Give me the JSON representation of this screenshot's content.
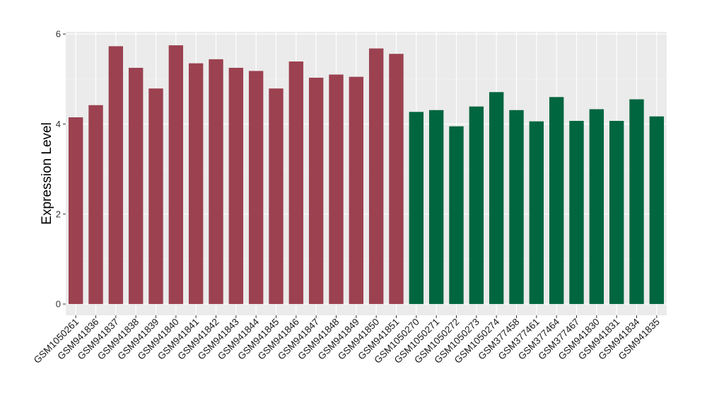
{
  "chart_data": {
    "type": "bar",
    "title": "",
    "xlabel": "",
    "ylabel": "Expression Level",
    "ylim": [
      -0.25,
      6.05
    ],
    "yticks": [
      0,
      2,
      4,
      6
    ],
    "grid": true,
    "background": "#ebebeb",
    "categories": [
      "GSM1050261",
      "GSM941836",
      "GSM941837",
      "GSM941838",
      "GSM941839",
      "GSM941840",
      "GSM941841",
      "GSM941842",
      "GSM941843",
      "GSM941844",
      "GSM941845",
      "GSM941846",
      "GSM941847",
      "GSM941848",
      "GSM941849",
      "GSM941850",
      "GSM941851",
      "GSM1050270",
      "GSM1050271",
      "GSM1050272",
      "GSM1050273",
      "GSM1050274",
      "GSM377458",
      "GSM377461",
      "GSM377464",
      "GSM377467",
      "GSM941830",
      "GSM941831",
      "GSM941834",
      "GSM941835"
    ],
    "values": [
      4.15,
      4.42,
      5.73,
      5.25,
      4.79,
      5.75,
      5.35,
      5.44,
      5.25,
      5.18,
      4.79,
      5.39,
      5.03,
      5.1,
      5.05,
      5.68,
      5.56,
      4.27,
      4.31,
      3.95,
      4.39,
      4.71,
      4.31,
      4.06,
      4.6,
      4.07,
      4.33,
      4.07,
      4.55,
      4.17
    ],
    "groups": [
      {
        "color": "#9b4150",
        "start": 0,
        "end": 16
      },
      {
        "color": "#006640",
        "start": 17,
        "end": 29
      }
    ]
  }
}
